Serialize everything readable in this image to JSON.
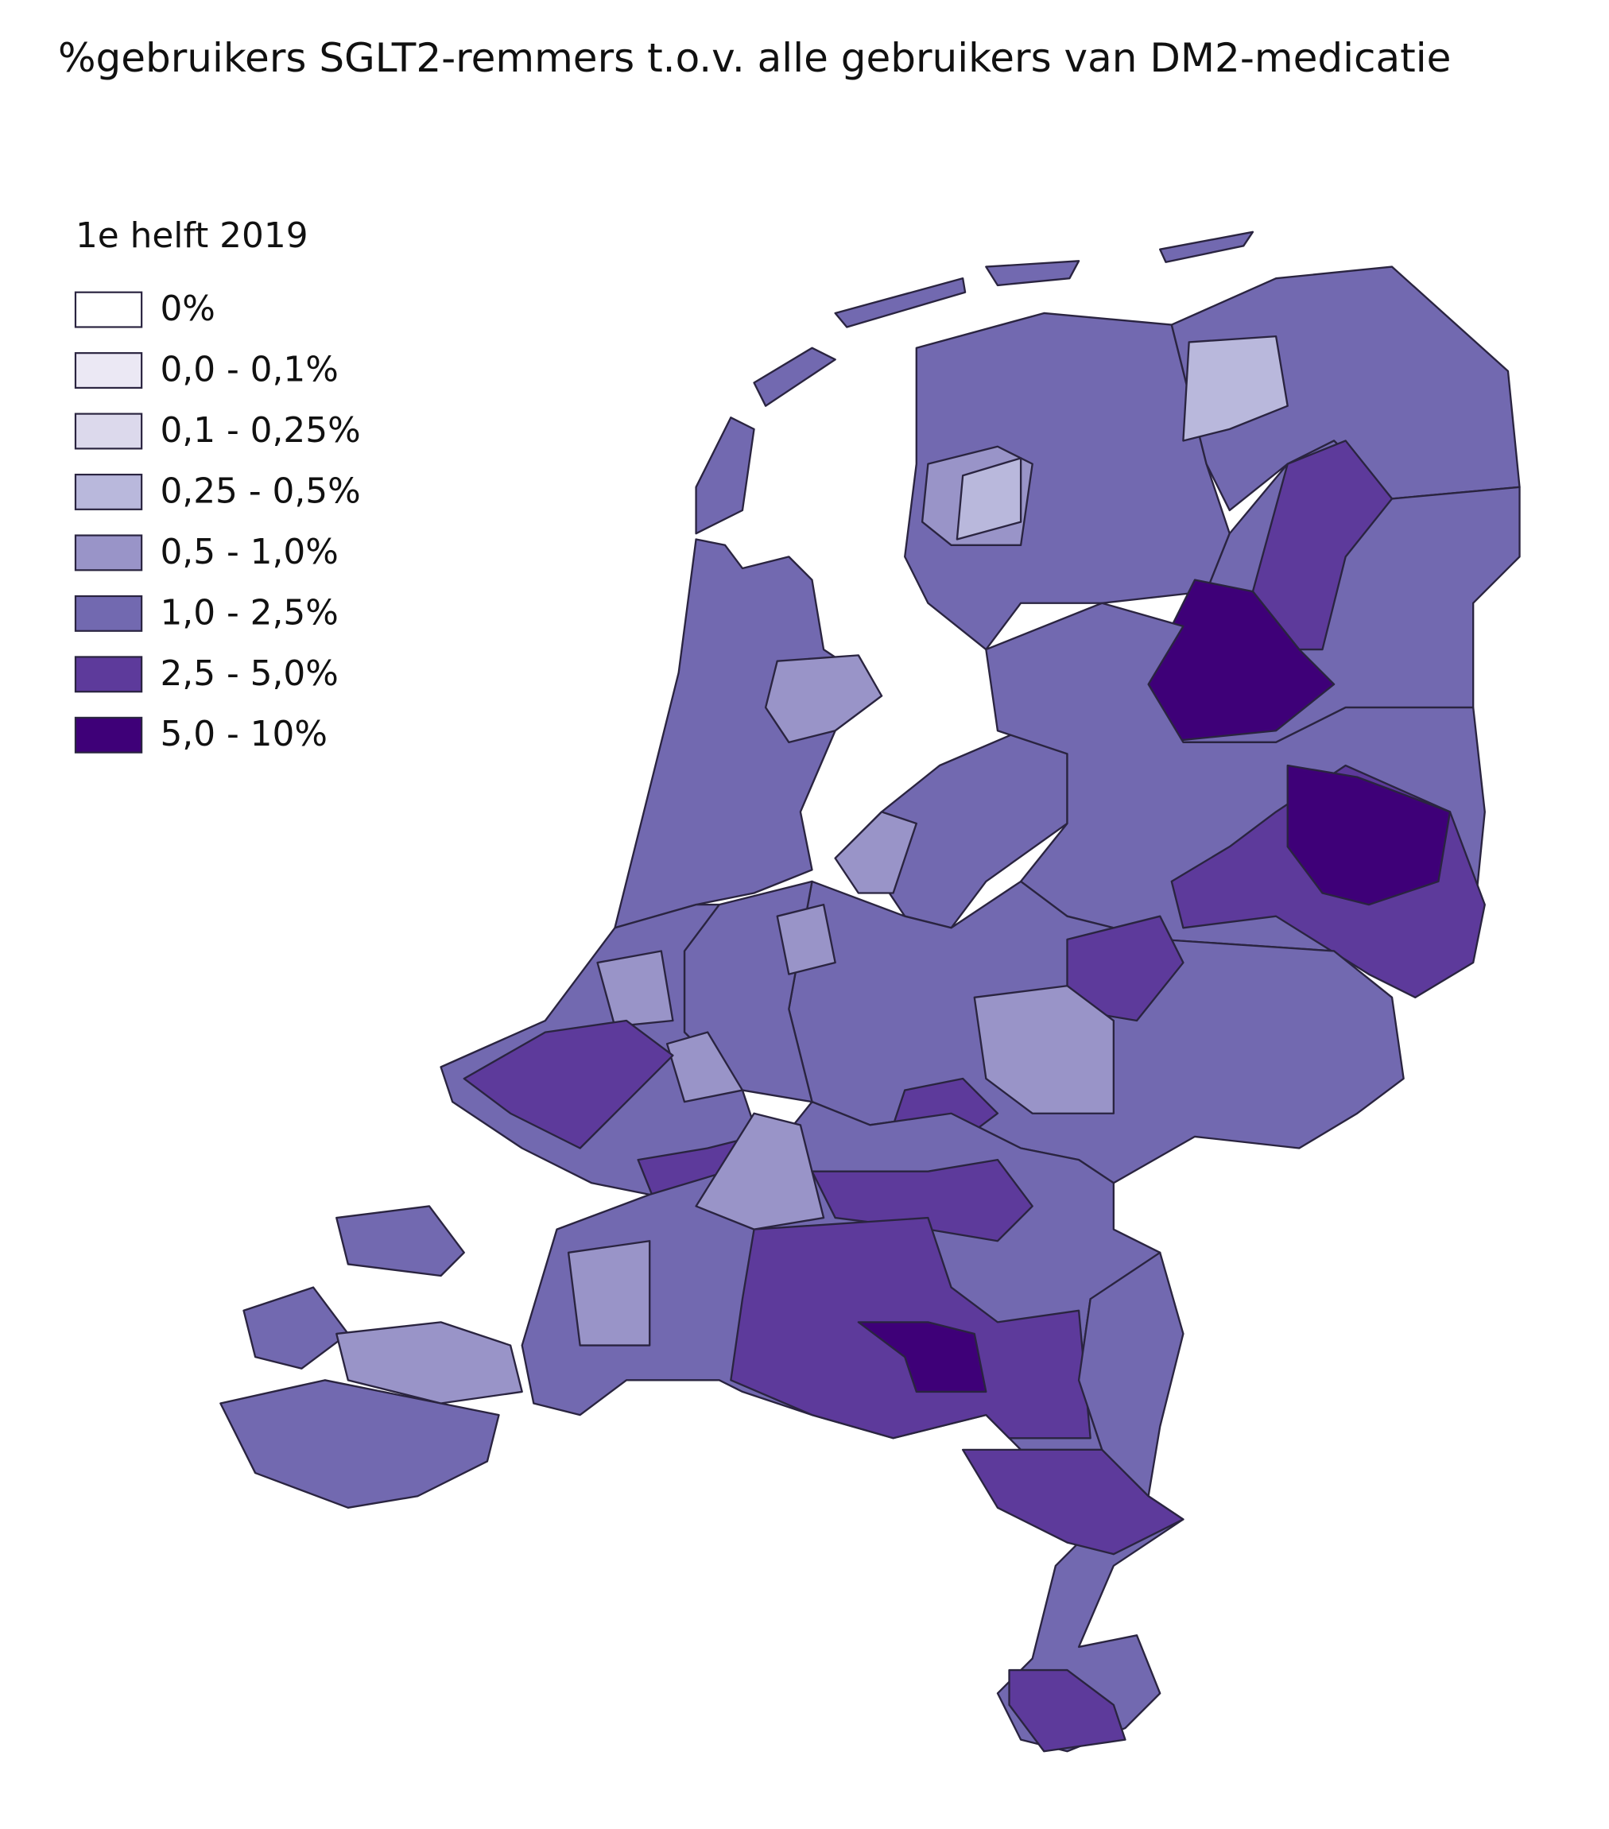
{
  "header": {
    "title": "%gebruikers SGLT2-remmers t.o.v. alle gebruikers van DM2-medicatie"
  },
  "legend": {
    "title": "1e helft 2019",
    "items": [
      {
        "label": "0%",
        "color": "#ffffff"
      },
      {
        "label": "0,0 - 0,1%",
        "color": "#ebe8f4"
      },
      {
        "label": "0,1 - 0,25%",
        "color": "#dcd9ec"
      },
      {
        "label": "0,25 - 0,5%",
        "color": "#b9b8dc"
      },
      {
        "label": "0,5 - 1,0%",
        "color": "#9994c8"
      },
      {
        "label": "1,0 - 2,5%",
        "color": "#7269b0"
      },
      {
        "label": "2,5 - 5,0%",
        "color": "#5d3a9b"
      },
      {
        "label": "5,0 - 10%",
        "color": "#3e0078"
      }
    ]
  }
}
